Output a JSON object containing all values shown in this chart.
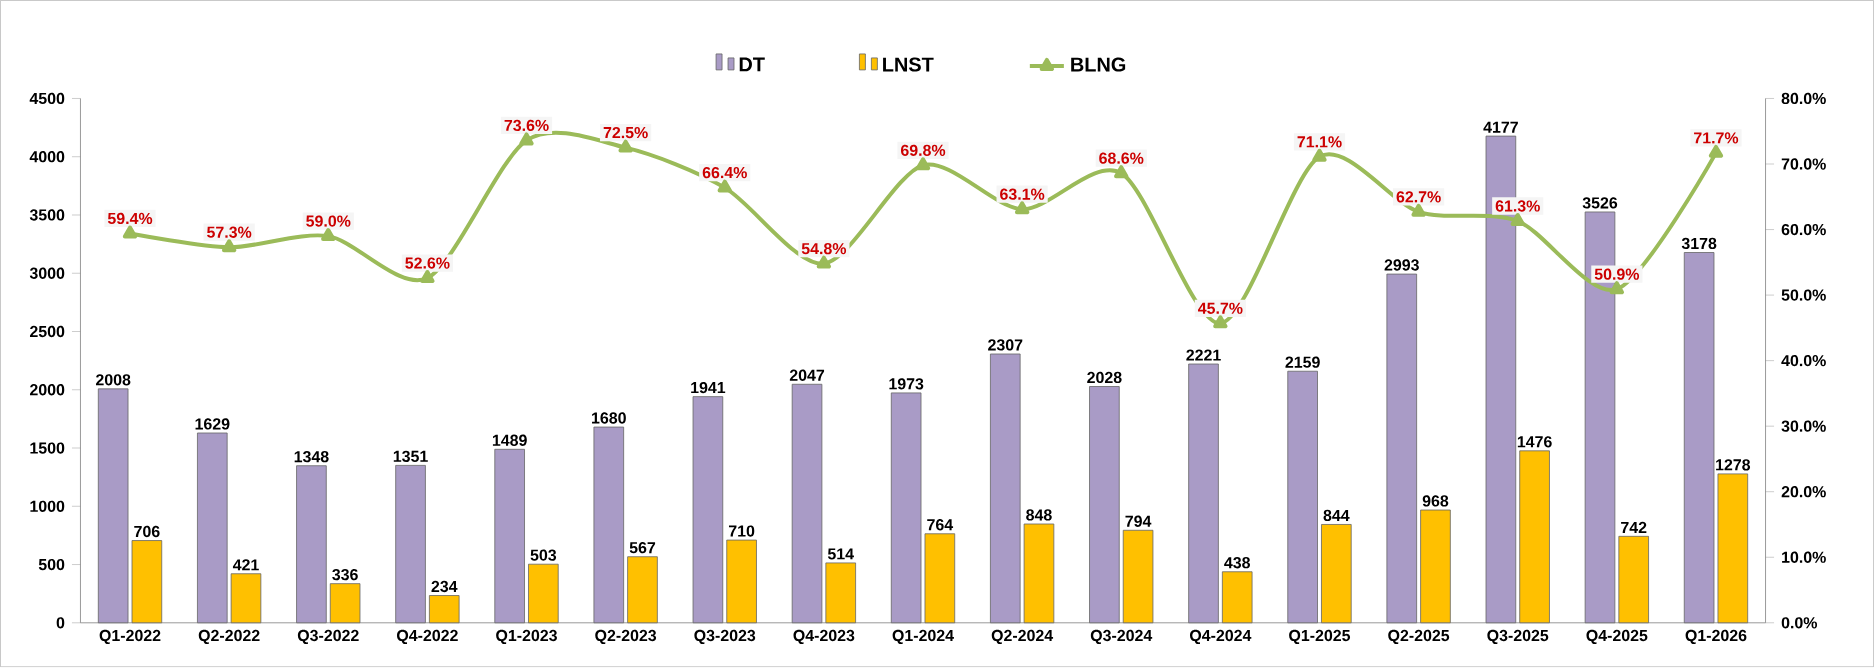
{
  "chart_data": {
    "type": "bar",
    "categories": [
      "Q1-2022",
      "Q2-2022",
      "Q3-2022",
      "Q4-2022",
      "Q1-2023",
      "Q2-2023",
      "Q3-2023",
      "Q4-2023",
      "Q1-2024",
      "Q2-2024",
      "Q3-2024",
      "Q4-2024",
      "Q1-2025",
      "Q2-2025",
      "Q3-2025",
      "Q4-2025",
      "Q1-2026"
    ],
    "series": [
      {
        "name": "DT",
        "color": "#a99bc6",
        "values": [
          2008,
          1629,
          1348,
          1351,
          1489,
          1680,
          1941,
          2047,
          1973,
          2307,
          2028,
          2221,
          2159,
          2993,
          4177,
          3526,
          3178
        ]
      },
      {
        "name": "LNST",
        "color": "#ffc000",
        "values": [
          706,
          421,
          336,
          234,
          503,
          567,
          710,
          514,
          764,
          848,
          794,
          438,
          844,
          968,
          1476,
          742,
          1278
        ]
      },
      {
        "name": "BLNG",
        "type": "line",
        "axis": "y2",
        "color": "#9bbb59",
        "marker": "triangle",
        "values": [
          59.4,
          57.3,
          59.0,
          52.6,
          73.6,
          72.5,
          66.4,
          54.8,
          69.8,
          63.1,
          68.6,
          45.7,
          71.1,
          62.7,
          61.3,
          50.9,
          71.7
        ],
        "value_labels": [
          "59.4%",
          "57.3%",
          "59.0%",
          "52.6%",
          "73.6%",
          "72.5%",
          "66.4%",
          "54.8%",
          "69.8%",
          "63.1%",
          "68.6%",
          "45.7%",
          "71.1%",
          "62.7%",
          "61.3%",
          "50.9%",
          "71.7%"
        ]
      }
    ],
    "data_labels": true,
    "ylim": [
      0,
      4500
    ],
    "yticks": [
      0,
      500,
      1000,
      1500,
      2000,
      2500,
      3000,
      3500,
      4000,
      4500
    ],
    "y2lim": [
      0,
      80
    ],
    "y2ticks": [
      {
        "value": 0,
        "label": "0.0%"
      },
      {
        "value": 10,
        "label": "10.0%"
      },
      {
        "value": 20,
        "label": "20.0%"
      },
      {
        "value": 30,
        "label": "30.0%"
      },
      {
        "value": 40,
        "label": "40.0%"
      },
      {
        "value": 50,
        "label": "50.0%"
      },
      {
        "value": 60,
        "label": "60.0%"
      },
      {
        "value": 70,
        "label": "70.0%"
      },
      {
        "value": 80,
        "label": "80.0%"
      }
    ],
    "legend": "top",
    "grid": false
  }
}
